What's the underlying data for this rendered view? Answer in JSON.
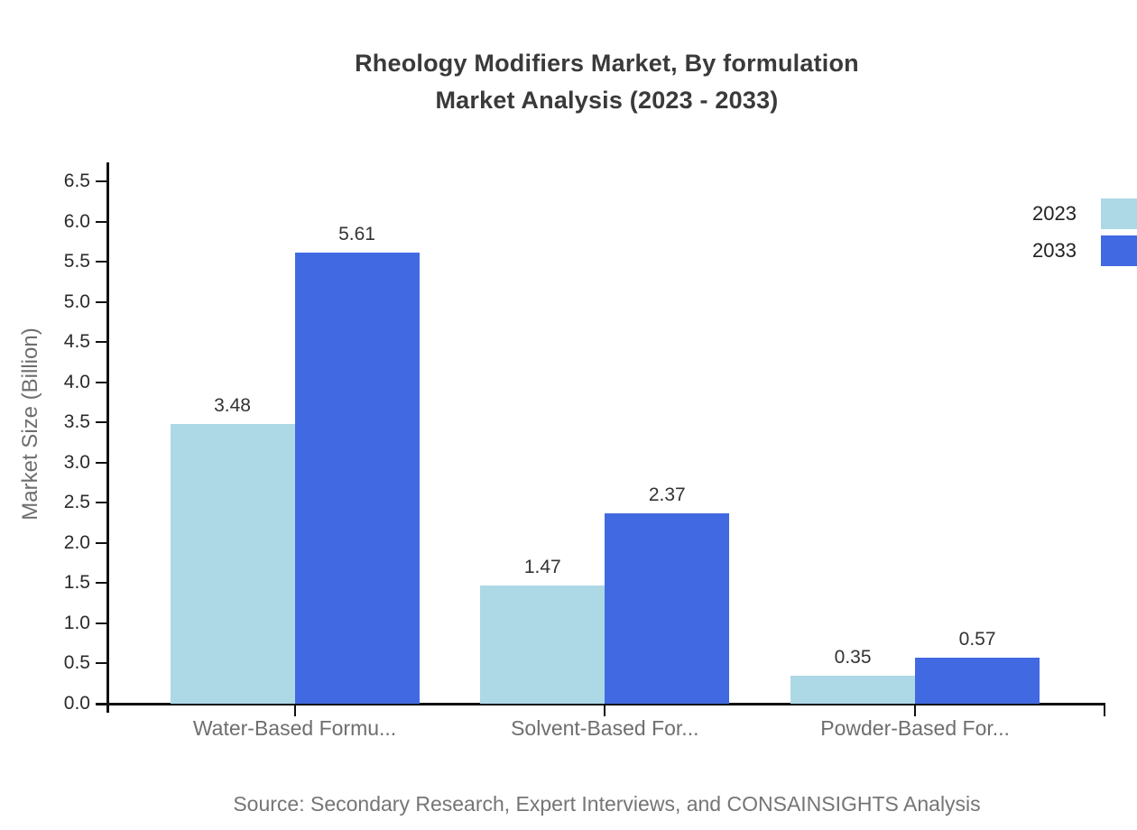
{
  "ui": {
    "title_line1": "Rheology Modifiers Market, By formulation",
    "title_line2": "Market Analysis (2023 - 2033)",
    "source": "Source: Secondary Research, Expert Interviews, and CONSAINSIGHTS Analysis"
  },
  "chart_data": {
    "type": "bar",
    "title": "Rheology Modifiers Market, By formulation Market Analysis (2023 - 2033)",
    "categories": [
      "Water-Based Formu...",
      "Solvent-Based For...",
      "Powder-Based For..."
    ],
    "series": [
      {
        "name": "2023",
        "color": "#ADD8E6",
        "values": [
          3.48,
          1.47,
          0.35
        ]
      },
      {
        "name": "2033",
        "color": "#4169E1",
        "values": [
          5.61,
          2.37,
          0.57
        ]
      }
    ],
    "xlabel": "",
    "ylabel": "Market Size (Billion)",
    "ylim": [
      0.0,
      6.5
    ],
    "ytick_step": 0.5,
    "ytick_format_decimals": 1,
    "value_label_decimals": 2,
    "grid": false,
    "legend_position": "top-right",
    "axis_color": "#111111",
    "text_color": "#333333"
  }
}
